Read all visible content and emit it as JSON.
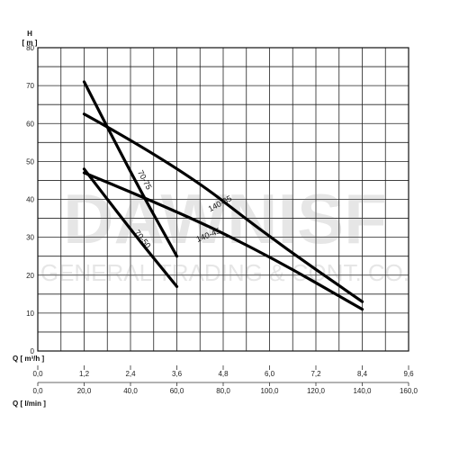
{
  "chart_data": {
    "type": "line",
    "ylabel_top": "H",
    "ylabel_unit": "[ m ]",
    "xlabel_primary": "Q [ m³/h ]",
    "xlabel_secondary": "Q [ l/min ]",
    "ylim": [
      0,
      80
    ],
    "xlim": [
      0,
      9.6
    ],
    "x_ticks": [
      "0,0",
      "1,2",
      "2,4",
      "3,6",
      "4,8",
      "6,0",
      "7,2",
      "8,4",
      "9,6"
    ],
    "x2_ticks": [
      "0,0",
      "20,0",
      "40,0",
      "60,0",
      "80,0",
      "100,0",
      "120,0",
      "140,0",
      "160,0"
    ],
    "y_ticks": [
      "0",
      "10",
      "20",
      "30",
      "40",
      "50",
      "60",
      "70",
      "80"
    ],
    "grid": true,
    "series": [
      {
        "name": "70-75",
        "x": [
          1.2,
          2.4,
          3.6
        ],
        "y": [
          71,
          47,
          25
        ]
      },
      {
        "name": "70-50",
        "x": [
          1.2,
          2.4,
          3.6
        ],
        "y": [
          48,
          32,
          17
        ]
      },
      {
        "name": "140-65",
        "x": [
          1.2,
          3.6,
          6.0,
          8.4
        ],
        "y": [
          62.5,
          49,
          30,
          13
        ]
      },
      {
        "name": "140-45",
        "x": [
          1.2,
          3.6,
          6.0,
          8.4
        ],
        "y": [
          47,
          37,
          25,
          11
        ]
      }
    ]
  },
  "watermark": {
    "brand": "DAWNISF",
    "tagline": "GENERAL TRADING & CONT. CO."
  }
}
